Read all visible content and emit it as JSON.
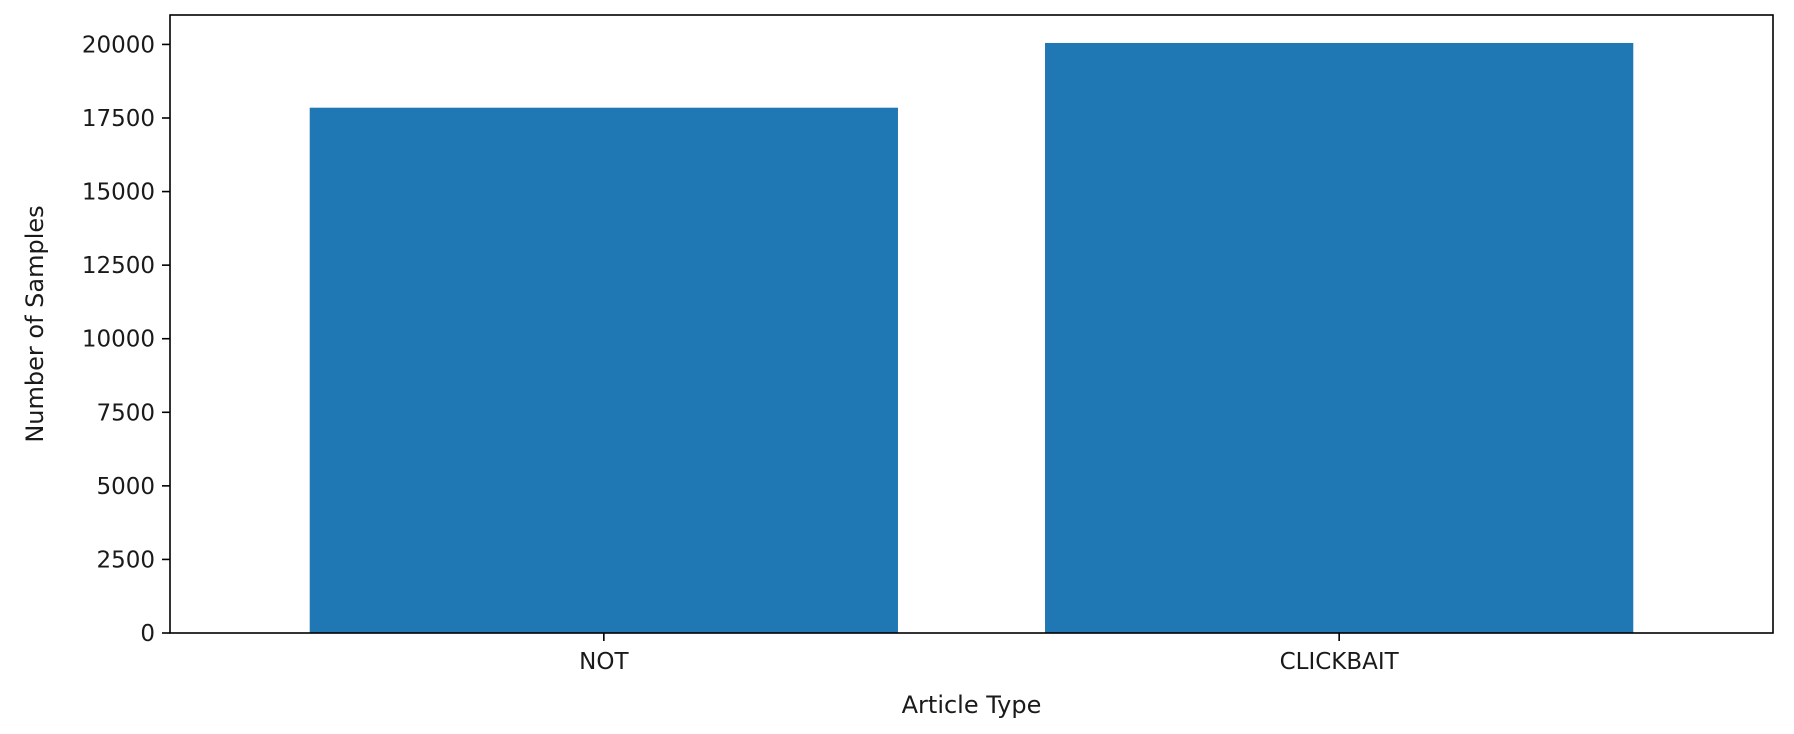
{
  "chart_data": {
    "type": "bar",
    "title": "",
    "categories": [
      "NOT",
      "CLICKBAIT"
    ],
    "values": [
      17850,
      20050
    ],
    "xlabel": "Article Type",
    "ylabel": "Number of Samples",
    "ylim": [
      0,
      21000
    ],
    "yticks": [
      0,
      2500,
      5000,
      7500,
      10000,
      12500,
      15000,
      17500,
      20000
    ],
    "grid": false,
    "bar_color": "#1f77b4",
    "axis_color": "#000000"
  }
}
